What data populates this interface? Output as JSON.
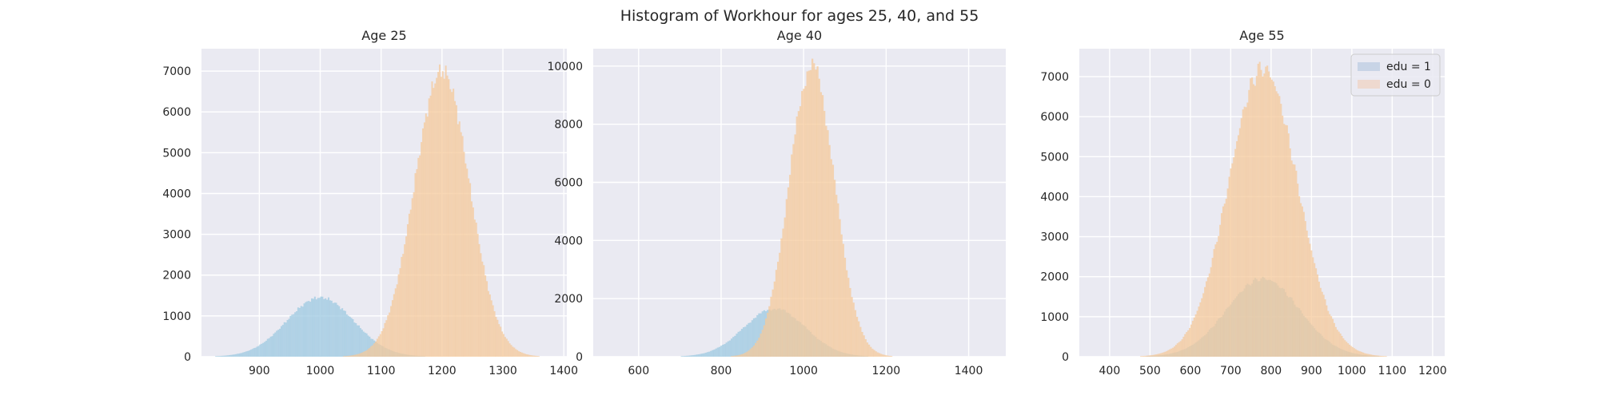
{
  "figure_title": "Histogram of Workhour for ages 25, 40, and 55",
  "chart_data": [
    {
      "type": "histogram",
      "title": "Age 25",
      "xlim": [
        805,
        1405
      ],
      "ylim": [
        0,
        7550
      ],
      "xticks": [
        900,
        1000,
        1100,
        1200,
        1300,
        1400
      ],
      "yticks": [
        0,
        1000,
        2000,
        3000,
        4000,
        5000,
        6000,
        7000
      ],
      "grid": true,
      "series": [
        {
          "label": "edu = 1",
          "color": "#9ecae1",
          "mean": 1000,
          "sd": 55,
          "peak": 1450
        },
        {
          "label": "edu = 0",
          "color": "#f5c99b",
          "mean": 1200,
          "sd": 45,
          "peak": 7000
        }
      ]
    },
    {
      "type": "histogram",
      "title": "Age 40",
      "xlim": [
        490,
        1490
      ],
      "ylim": [
        0,
        10600
      ],
      "xticks": [
        600,
        800,
        1000,
        1200,
        1400
      ],
      "yticks": [
        0,
        2000,
        4000,
        6000,
        8000,
        10000
      ],
      "grid": true,
      "series": [
        {
          "label": "edu = 1",
          "color": "#9ecae1",
          "mean": 930,
          "sd": 75,
          "peak": 1650
        },
        {
          "label": "edu = 0",
          "color": "#f5c99b",
          "mean": 1020,
          "sd": 55,
          "peak": 10000
        }
      ]
    },
    {
      "type": "histogram",
      "title": "Age 55",
      "xlim": [
        325,
        1230
      ],
      "ylim": [
        0,
        7700
      ],
      "xticks": [
        400,
        500,
        600,
        700,
        800,
        900,
        1000,
        1100,
        1200
      ],
      "yticks": [
        0,
        1000,
        2000,
        3000,
        4000,
        5000,
        6000,
        7000
      ],
      "grid": true,
      "legend": {
        "position": "top-right",
        "entries": [
          "edu = 1",
          "edu = 0"
        ],
        "colors": [
          "#c8d4e6",
          "#eed9cf"
        ]
      },
      "series": [
        {
          "label": "edu = 1",
          "color": "#9ecae1",
          "mean": 780,
          "sd": 90,
          "peak": 1950
        },
        {
          "label": "edu = 0",
          "color": "#f5c99b",
          "mean": 780,
          "sd": 85,
          "peak": 7200
        }
      ]
    }
  ]
}
